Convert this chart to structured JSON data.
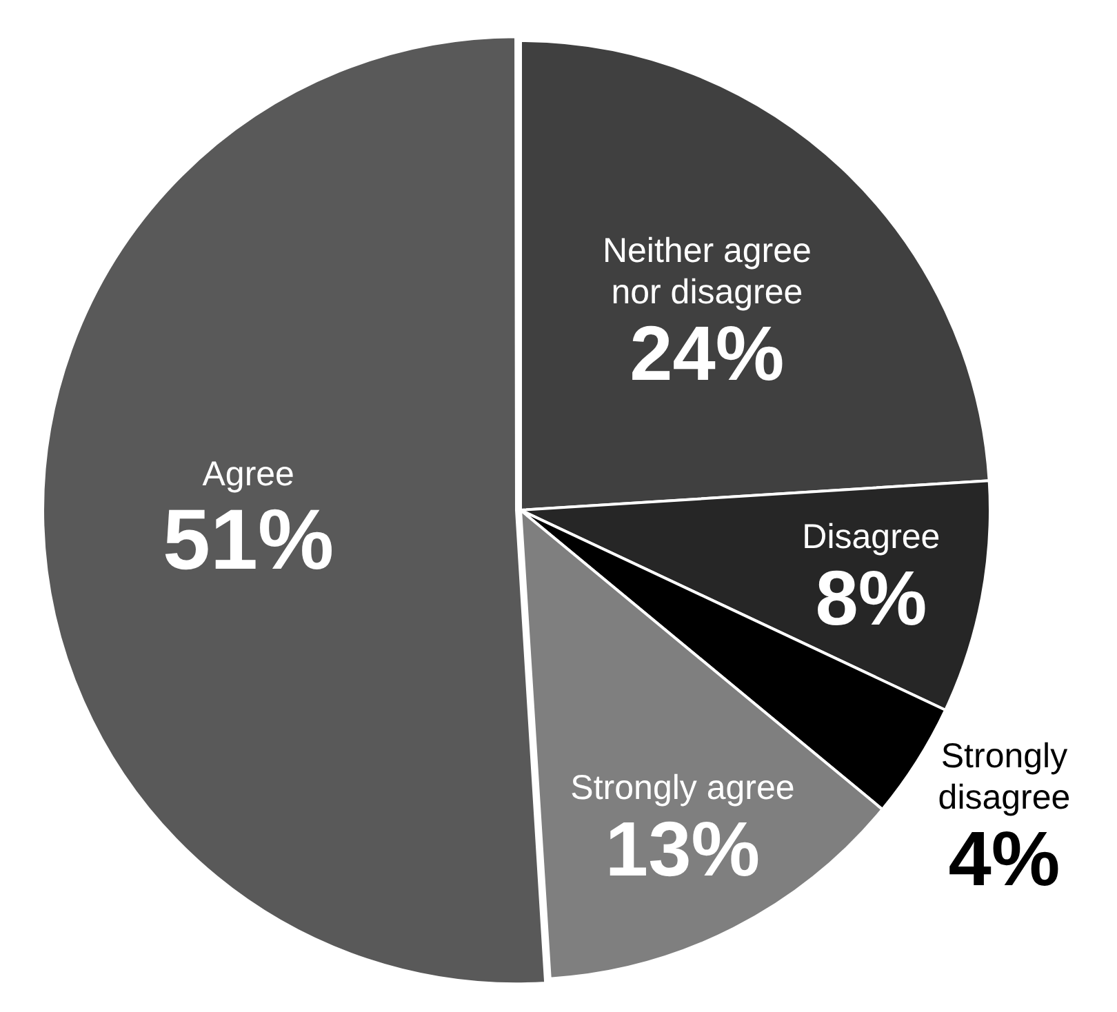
{
  "chart_data": {
    "type": "pie",
    "categories": [
      "Neither agree nor disagree",
      "Disagree",
      "Strongly disagree",
      "Strongly agree",
      "Agree"
    ],
    "values": [
      24,
      8,
      4,
      13,
      51
    ],
    "colors": [
      "#404040",
      "#262626",
      "#000000",
      "#7f7f7f",
      "#595959"
    ],
    "value_labels": [
      "24%",
      "8%",
      "4%",
      "13%",
      "51%"
    ],
    "legend": false
  }
}
